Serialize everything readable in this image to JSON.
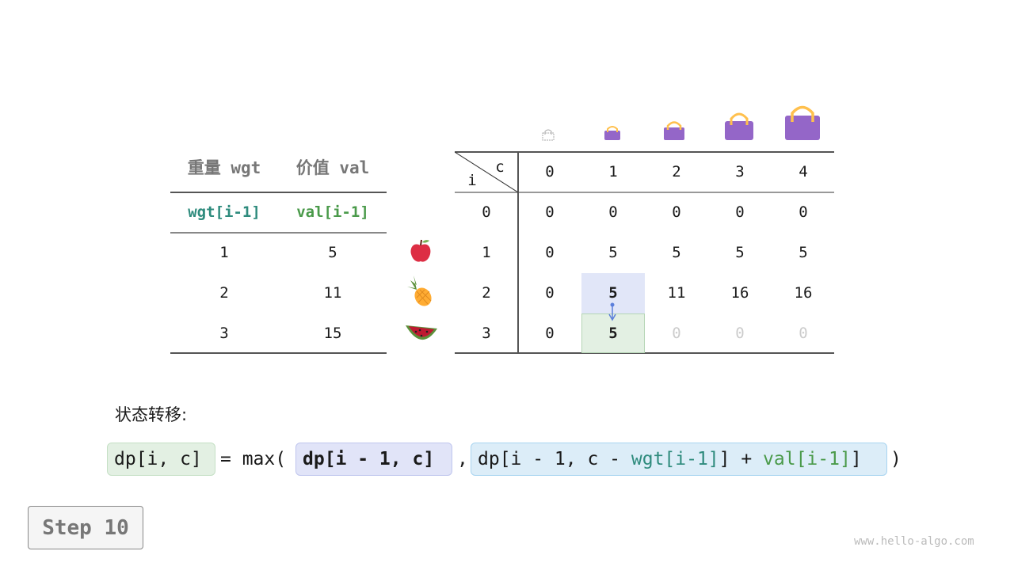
{
  "left_table": {
    "headers": [
      "重量 wgt",
      "价值 val"
    ],
    "subheaders": [
      "wgt[i-1]",
      "val[i-1]"
    ],
    "rows": [
      [
        "1",
        "5"
      ],
      [
        "2",
        "11"
      ],
      [
        "3",
        "15"
      ]
    ],
    "items": [
      "apple-icon",
      "pineapple-icon",
      "watermelon-icon"
    ]
  },
  "dp_table": {
    "corner_c": "c",
    "corner_i": "i",
    "col_headers": [
      "0",
      "1",
      "2",
      "3",
      "4"
    ],
    "row_headers": [
      "0",
      "1",
      "2",
      "3"
    ],
    "rows": [
      [
        "0",
        "0",
        "0",
        "0",
        "0"
      ],
      [
        "0",
        "5",
        "5",
        "5",
        "5"
      ],
      [
        "0",
        "5",
        "11",
        "16",
        "16"
      ],
      [
        "0",
        "5",
        "0",
        "0",
        "0"
      ]
    ],
    "highlight_source": {
      "row": 2,
      "col": 1,
      "color": "#e1e6f8"
    },
    "highlight_target": {
      "row": 3,
      "col": 1,
      "color": "#e3f0e3"
    },
    "pending_color": "#cccccc"
  },
  "formula": {
    "label": "状态转移:",
    "lhs": "dp[i, c]",
    "eq": "= max(",
    "term1": "dp[i - 1, c]",
    "comma": ",",
    "term2_a": "dp[i - 1, c - ",
    "term2_wgt": "wgt[i-1]",
    "term2_b": "] + ",
    "term2_val": "val[i-1]",
    "close": ")",
    "colors": {
      "wgt": "#2e8b7d",
      "val": "#4a9a4a"
    }
  },
  "step_button": "Step 10",
  "watermark": "www.hello-algo.com"
}
